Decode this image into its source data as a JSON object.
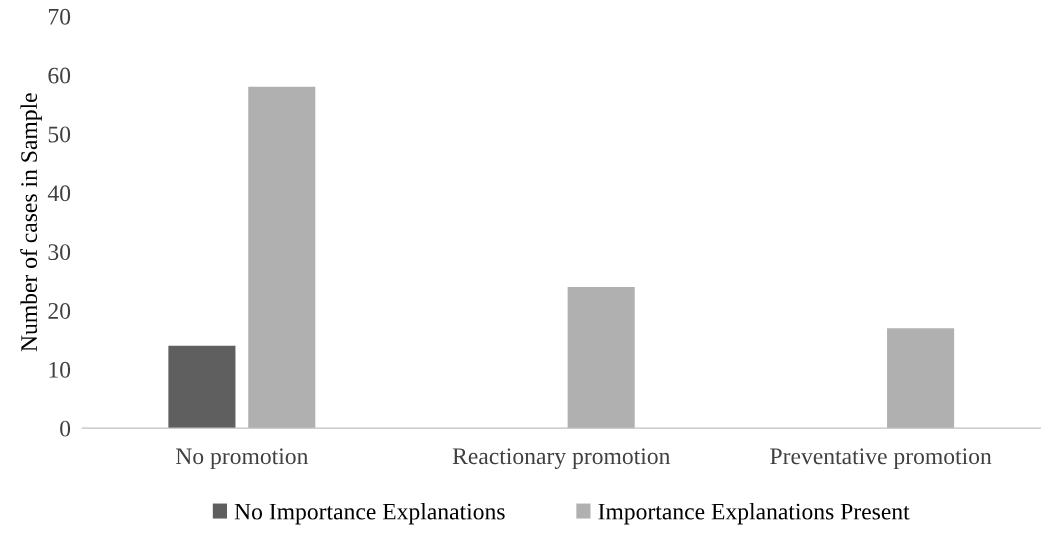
{
  "chart_data": {
    "type": "bar",
    "ylabel": "Number of cases in Sample",
    "categories": [
      "No promotion",
      "Reactionary promotion",
      "Preventative promotion"
    ],
    "series": [
      {
        "name": "No Importance Explanations",
        "color": "#5f5f5f",
        "values": [
          14,
          0,
          0
        ]
      },
      {
        "name": "Importance Explanations Present",
        "color": "#b0b0b0",
        "values": [
          58,
          24,
          17
        ]
      }
    ],
    "ylim": [
      0,
      70
    ],
    "yticks": [
      0,
      10,
      20,
      30,
      40,
      50,
      60,
      70
    ],
    "grid": false,
    "legend": "bottom"
  }
}
